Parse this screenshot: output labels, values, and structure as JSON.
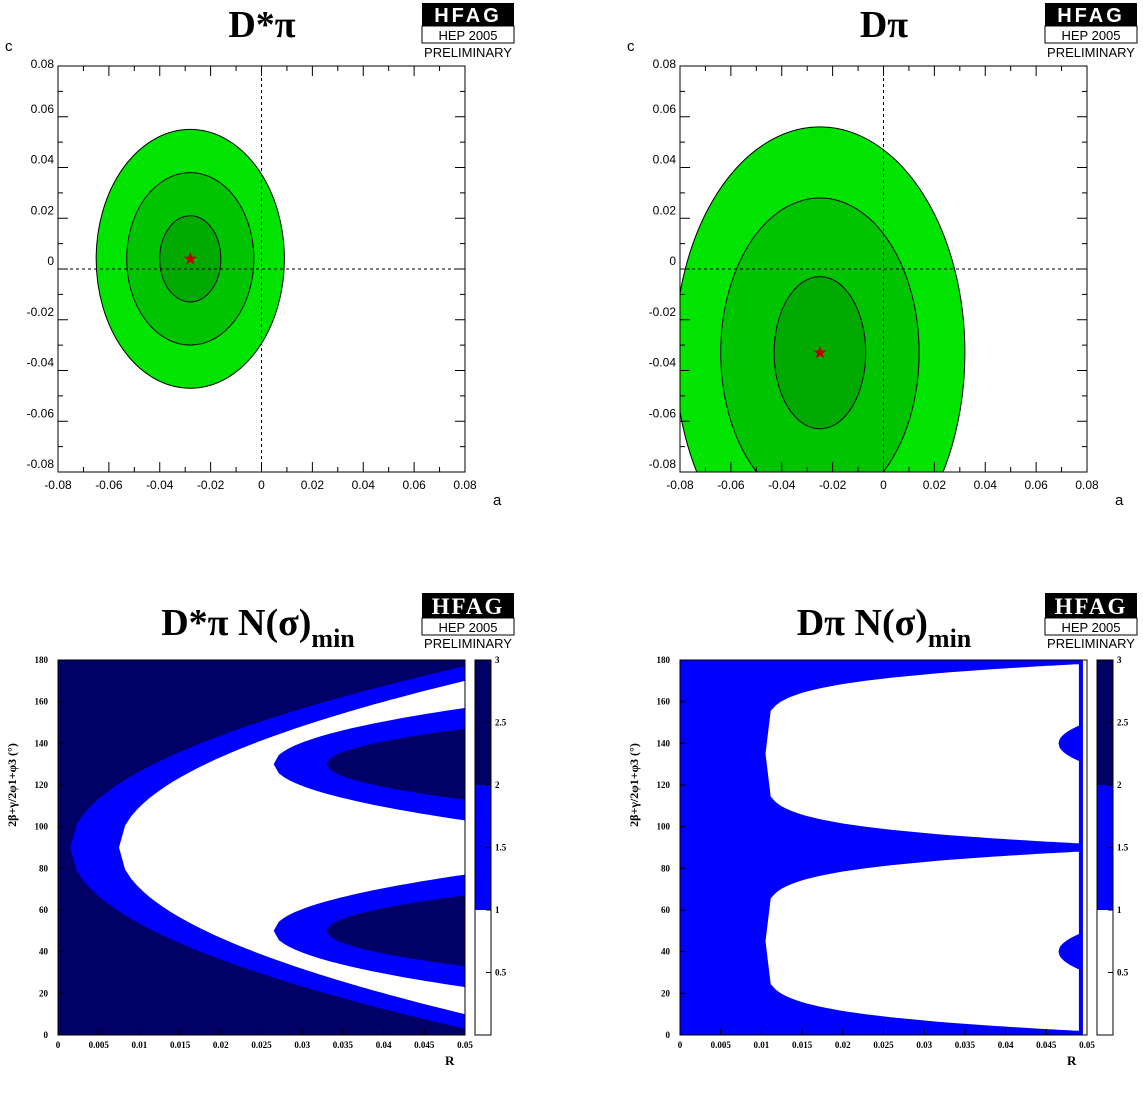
{
  "badge": {
    "name": "HFAG",
    "event": "HEP 2005",
    "status": "PRELIMINARY"
  },
  "colors": {
    "green_1sigma": "#00aa00",
    "green_2sigma": "#00c400",
    "green_3sigma": "#00e400",
    "star": "#c00000",
    "blue_light": "#0000ff",
    "blue_dark": "#000066"
  },
  "chart_data": [
    {
      "type": "contour",
      "title": "D*π",
      "xlabel": "a",
      "ylabel": "c",
      "xlim": [
        -0.08,
        0.08
      ],
      "ylim": [
        -0.08,
        0.08
      ],
      "xticks": [
        "-0.08",
        "-0.06",
        "-0.04",
        "-0.02",
        "0",
        "0.02",
        "0.04",
        "0.06",
        "0.08"
      ],
      "yticks": [
        "-0.08",
        "-0.06",
        "-0.04",
        "-0.02",
        "0",
        "0.02",
        "0.04",
        "0.06",
        "0.08"
      ],
      "center": {
        "a": -0.028,
        "c": 0.004
      },
      "ellipses": [
        {
          "sigma": 3,
          "ra": 0.037,
          "rc": 0.051
        },
        {
          "sigma": 2,
          "ra": 0.025,
          "rc": 0.034
        },
        {
          "sigma": 1,
          "ra": 0.012,
          "rc": 0.017
        }
      ],
      "reference_lines": {
        "a": 0,
        "c": 0
      }
    },
    {
      "type": "contour",
      "title": "Dπ",
      "xlabel": "a",
      "ylabel": "c",
      "xlim": [
        -0.08,
        0.08
      ],
      "ylim": [
        -0.08,
        0.08
      ],
      "xticks": [
        "-0.08",
        "-0.06",
        "-0.04",
        "-0.02",
        "0",
        "0.02",
        "0.04",
        "0.06",
        "0.08"
      ],
      "yticks": [
        "-0.08",
        "-0.06",
        "-0.04",
        "-0.02",
        "0",
        "0.02",
        "0.04",
        "0.06",
        "0.08"
      ],
      "center": {
        "a": -0.025,
        "c": -0.033
      },
      "ellipses": [
        {
          "sigma": 3,
          "ra": 0.057,
          "rc": 0.089
        },
        {
          "sigma": 2,
          "ra": 0.039,
          "rc": 0.061
        },
        {
          "sigma": 1,
          "ra": 0.018,
          "rc": 0.03
        }
      ],
      "reference_lines": {
        "a": 0,
        "c": 0
      }
    },
    {
      "type": "heatmap",
      "title": "D*π N(σ)",
      "title_sub": "min",
      "xlabel": "R",
      "ylabel": "2β+γ/2φ1+φ3 (°)",
      "xlim": [
        0,
        0.05
      ],
      "ylim": [
        0,
        180
      ],
      "xticks": [
        "0",
        "0.005",
        "0.01",
        "0.015",
        "0.02",
        "0.025",
        "0.03",
        "0.035",
        "0.04",
        "0.045",
        "0.05"
      ],
      "yticks": [
        "0",
        "20",
        "40",
        "60",
        "80",
        "100",
        "120",
        "140",
        "160",
        "180"
      ],
      "zlim": [
        0,
        3
      ],
      "zticks": [
        "0.5",
        "1",
        "1.5",
        "2",
        "2.5",
        "3"
      ],
      "levels": [
        {
          "range": [
            0,
            1
          ],
          "color": "#ffffff"
        },
        {
          "range": [
            1,
            2
          ],
          "color": "#0000ff"
        },
        {
          "range": [
            2,
            3
          ],
          "color": "#000066"
        }
      ],
      "regions": {
        "blue_band_x_at_phi90": [
          0.0015,
          0.0075
        ],
        "white_outer_phi_at_R_0.05": [
          10,
          170
        ],
        "white_tips_R": 0.0075,
        "blue_lobes": [
          {
            "center_phi": 130,
            "tip_R": 0.0265,
            "phi_range_at_R_0.05": [
              103,
              157
            ]
          },
          {
            "center_phi": 50,
            "tip_R": 0.0265,
            "phi_range_at_R_0.05": [
              23,
              77
            ]
          }
        ],
        "dark_lobes": [
          {
            "center_phi": 130,
            "tip_R": 0.033,
            "phi_range_at_R_0.05": [
              113,
              147
            ]
          },
          {
            "center_phi": 50,
            "tip_R": 0.033,
            "phi_range_at_R_0.05": [
              33,
              67
            ]
          }
        ]
      }
    },
    {
      "type": "heatmap",
      "title": "Dπ N(σ)",
      "title_sub": "min",
      "xlabel": "R",
      "ylabel": "2β+γ/2φ1+φ3 (°)",
      "xlim": [
        0,
        0.05
      ],
      "ylim": [
        0,
        180
      ],
      "xticks": [
        "0",
        "0.005",
        "0.01",
        "0.015",
        "0.02",
        "0.025",
        "0.03",
        "0.035",
        "0.04",
        "0.045",
        "0.05"
      ],
      "yticks": [
        "0",
        "20",
        "40",
        "60",
        "80",
        "100",
        "120",
        "140",
        "160",
        "180"
      ],
      "zlim": [
        0,
        3
      ],
      "zticks": [
        "0.5",
        "1",
        "1.5",
        "2",
        "2.5",
        "3"
      ],
      "levels": [
        {
          "range": [
            0,
            1
          ],
          "color": "#ffffff"
        },
        {
          "range": [
            1,
            2
          ],
          "color": "#0000ff"
        },
        {
          "range": [
            2,
            3
          ],
          "color": "#000066"
        }
      ],
      "regions": {
        "blue_band_R_max": 0.0105,
        "white_upper_phi": [
          92,
          178
        ],
        "white_lower_phi": [
          2,
          88
        ],
        "blue_lobes": [
          {
            "center_phi": 140,
            "tip_R": 0.0465
          },
          {
            "center_phi": 40,
            "tip_R": 0.0465
          }
        ]
      }
    }
  ]
}
